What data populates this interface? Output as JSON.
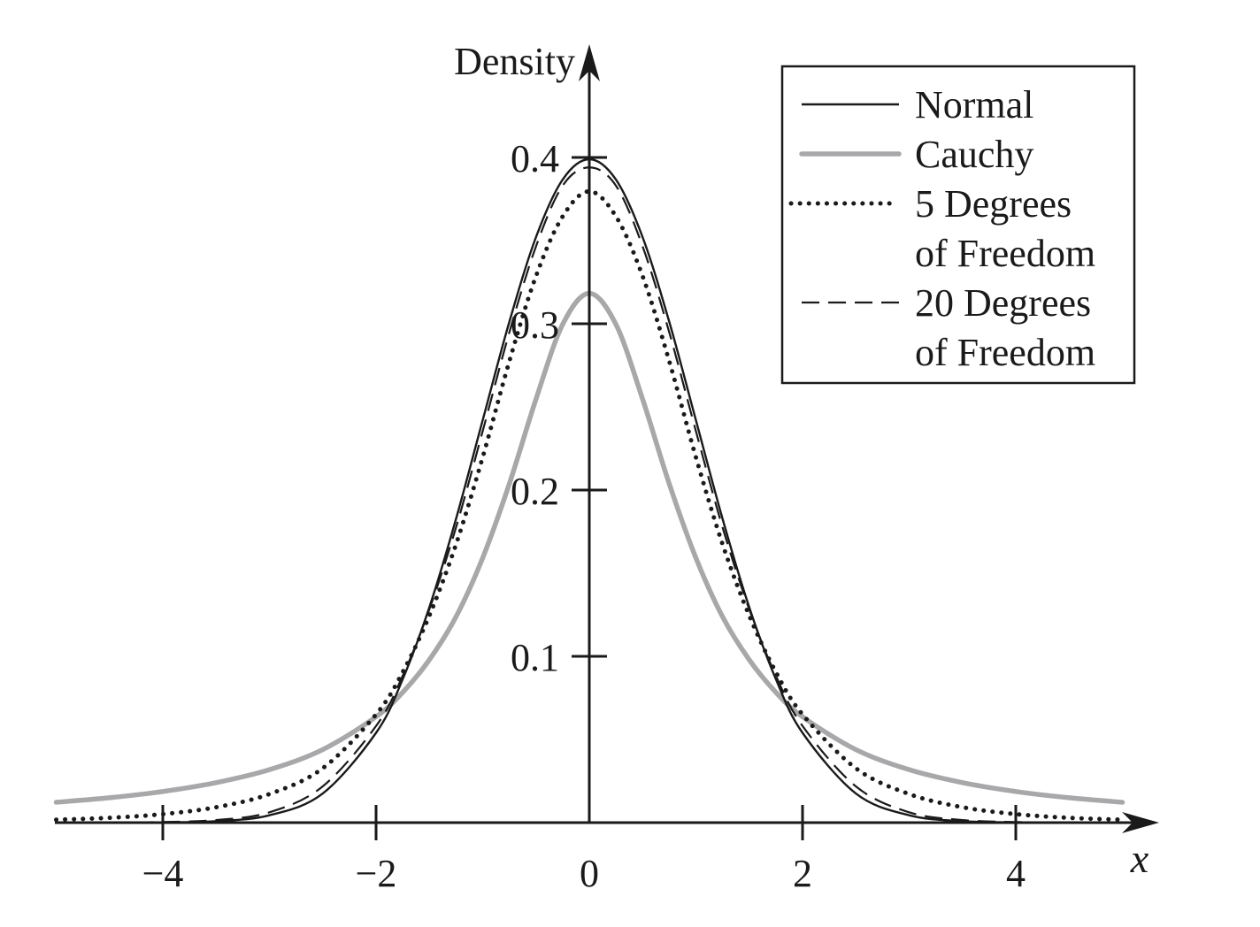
{
  "chart_data": {
    "type": "line",
    "title": "",
    "xlabel": "x",
    "ylabel": "Density",
    "xlim": [
      -5,
      5
    ],
    "ylim": [
      0,
      0.42
    ],
    "x_ticks": [
      -4,
      -2,
      0,
      2,
      4
    ],
    "x_tick_labels": [
      "−4",
      "−2",
      "0",
      "2",
      "4"
    ],
    "y_ticks": [
      0.1,
      0.2,
      0.3,
      0.4
    ],
    "y_tick_labels": [
      "0.1",
      "0.2",
      "0.3",
      "0.4"
    ],
    "grid": false,
    "legend_position": "top-right",
    "x": [
      -5,
      -4.5,
      -4,
      -3.5,
      -3,
      -2.5,
      -2,
      -1.75,
      -1.5,
      -1.25,
      -1,
      -0.75,
      -0.5,
      -0.25,
      0,
      0.25,
      0.5,
      0.75,
      1,
      1.25,
      1.5,
      1.75,
      2,
      2.5,
      3,
      3.5,
      4,
      4.5,
      5
    ],
    "series": [
      {
        "name": "Normal",
        "style": "solid",
        "color": "#1a1a1a",
        "values": [
          1.5e-06,
          1.6e-05,
          0.000134,
          0.000873,
          0.004432,
          0.017528,
          0.053991,
          0.086277,
          0.129518,
          0.182649,
          0.241971,
          0.301137,
          0.352065,
          0.386668,
          0.398942,
          0.386668,
          0.352065,
          0.301137,
          0.241971,
          0.182649,
          0.129518,
          0.086277,
          0.053991,
          0.017528,
          0.004432,
          0.000873,
          0.000134,
          1.6e-05,
          1.5e-06
        ]
      },
      {
        "name": "Cauchy",
        "style": "solid-thick",
        "color": "#a8a8ab",
        "values": [
          0.012243,
          0.014968,
          0.018724,
          0.024061,
          0.031831,
          0.043905,
          0.063662,
          0.078353,
          0.097942,
          0.123785,
          0.159155,
          0.203718,
          0.254648,
          0.299585,
          0.31831,
          0.299585,
          0.254648,
          0.203718,
          0.159155,
          0.123785,
          0.097942,
          0.078353,
          0.063662,
          0.043905,
          0.031831,
          0.024061,
          0.018724,
          0.014968,
          0.012243
        ]
      },
      {
        "name": "5 Degrees of Freedom",
        "label_lines": [
          "5 Degrees",
          "of Freedom"
        ],
        "style": "dotted",
        "color": "#1a1a1a",
        "values": [
          0.00176,
          0.00289,
          0.00511,
          0.00926,
          0.01718,
          0.03269,
          0.06509,
          0.09052,
          0.12451,
          0.16736,
          0.21968,
          0.27742,
          0.32863,
          0.36451,
          0.37961,
          0.36451,
          0.32863,
          0.27742,
          0.21968,
          0.16736,
          0.12451,
          0.09052,
          0.06509,
          0.03269,
          0.01718,
          0.00926,
          0.00511,
          0.00289,
          0.00176
        ]
      },
      {
        "name": "20 Degrees of Freedom",
        "label_lines": [
          "20 Degrees",
          "of Freedom"
        ],
        "style": "dashed",
        "color": "#1a1a1a",
        "values": [
          1.8e-05,
          8.7e-05,
          0.00036,
          0.00155,
          0.0062,
          0.0218,
          0.0581,
          0.0883,
          0.1283,
          0.1775,
          0.2354,
          0.2948,
          0.3465,
          0.383,
          0.394,
          0.383,
          0.3465,
          0.2948,
          0.2354,
          0.1775,
          0.1283,
          0.0883,
          0.0581,
          0.0218,
          0.0062,
          0.00155,
          0.00036,
          8.7e-05,
          1.8e-05
        ]
      }
    ]
  }
}
